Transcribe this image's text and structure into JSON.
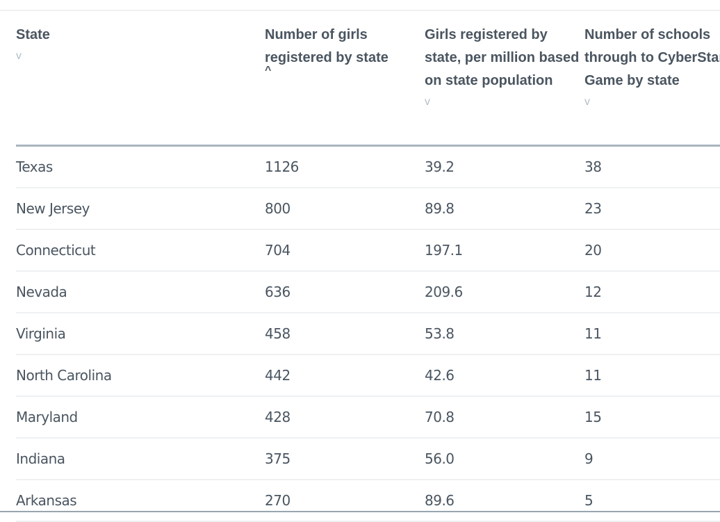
{
  "headers": [
    {
      "lines": [
        "State"
      ],
      "sort": "v",
      "active": false
    },
    {
      "lines": [
        "Number of girls",
        "registered by state"
      ],
      "sort": "^",
      "active": true
    },
    {
      "lines": [
        "Girls registered by",
        "state, per million based",
        "on state population"
      ],
      "sort": "v",
      "active": false
    },
    {
      "lines": [
        "Number of schools",
        "through to CyberStart",
        "Game by state"
      ],
      "sort": "v",
      "active": false
    }
  ],
  "rows": [
    [
      "Texas",
      "1126",
      "39.2",
      "38"
    ],
    [
      "New Jersey",
      "800",
      "89.8",
      "23"
    ],
    [
      "Connecticut",
      "704",
      "197.1",
      "20"
    ],
    [
      "Nevada",
      "636",
      "209.6",
      "12"
    ],
    [
      "Virginia",
      "458",
      "53.8",
      "11"
    ],
    [
      "North Carolina",
      "442",
      "42.6",
      "11"
    ],
    [
      "Maryland",
      "428",
      "70.8",
      "15"
    ],
    [
      "Indiana",
      "375",
      "56.0",
      "9"
    ],
    [
      "Arkansas",
      "270",
      "89.6",
      "5"
    ]
  ]
}
